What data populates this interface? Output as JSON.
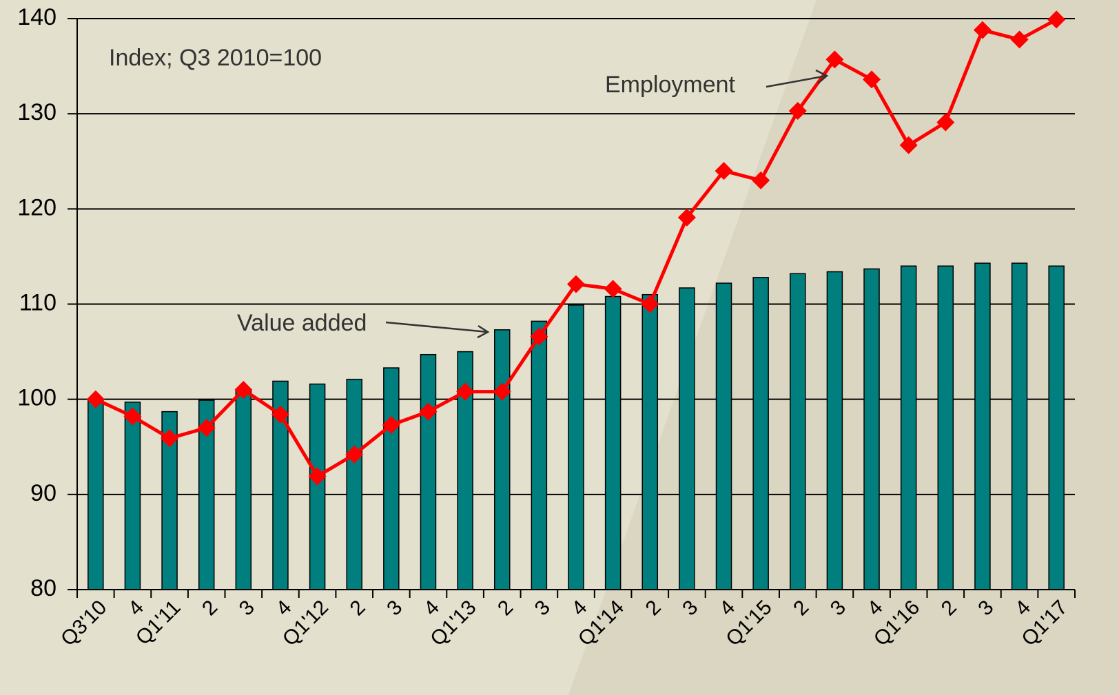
{
  "chart_data": {
    "type": "bar",
    "subtitle": "Index; Q3 2010=100",
    "categories": [
      "Q3'10",
      "4",
      "Q1'11",
      "2",
      "3",
      "4",
      "Q1'12",
      "2",
      "3",
      "4",
      "Q1'13",
      "2",
      "3",
      "4",
      "Q1'14",
      "2",
      "3",
      "4",
      "Q1'15",
      "2",
      "3",
      "4",
      "Q1'16",
      "2",
      "3",
      "4",
      "Q1'17"
    ],
    "series": [
      {
        "name": "Value added",
        "type": "bar",
        "color": "#007f7e",
        "values": [
          100,
          99.7,
          98.7,
          99.9,
          101,
          101.9,
          101.6,
          102.1,
          103.3,
          104.7,
          105.0,
          107.3,
          108.2,
          109.9,
          110.8,
          111.0,
          111.7,
          112.2,
          112.8,
          113.2,
          113.4,
          113.7,
          114.0,
          114.0,
          114.3,
          114.3,
          114.0
        ]
      },
      {
        "name": "Employment",
        "type": "line",
        "color": "#ff0000",
        "values": [
          100,
          98.2,
          95.9,
          97.0,
          101.0,
          98.4,
          91.9,
          94.2,
          97.3,
          98.7,
          100.8,
          100.8,
          106.6,
          112.1,
          111.6,
          110.0,
          119.1,
          124.0,
          123.0,
          130.3,
          135.7,
          133.6,
          126.7,
          129.1,
          138.8,
          137.8,
          139.9
        ]
      }
    ],
    "ylim": [
      80,
      140
    ],
    "yticks": [
      80,
      90,
      100,
      110,
      120,
      130,
      140
    ],
    "grid": true
  }
}
